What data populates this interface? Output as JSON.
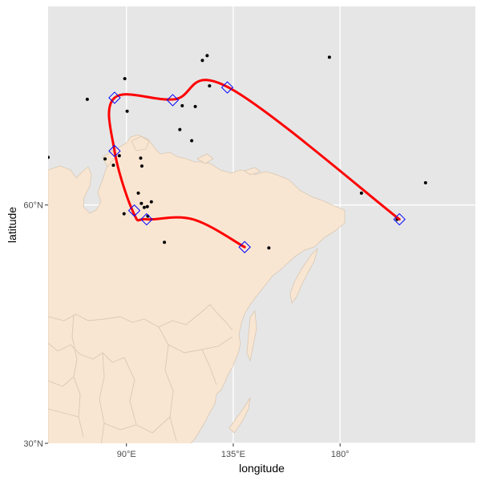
{
  "chart_data": {
    "type": "map",
    "xlabel": "longitude",
    "ylabel": "latitude",
    "xlim": [
      57,
      237
    ],
    "ylim": [
      30,
      85
    ],
    "x_ticks": [
      {
        "value": 90,
        "label": "90°E"
      },
      {
        "value": 135,
        "label": "135°E"
      },
      {
        "value": 180,
        "label": "180°"
      }
    ],
    "y_ticks": [
      {
        "value": 30,
        "label": "30°N"
      },
      {
        "value": 60,
        "label": "60°N"
      }
    ],
    "grid": true,
    "colors": {
      "panel": "#e6e6e6",
      "land": "#f9e6d2",
      "border": "#d9c8b3",
      "route": "#ff0000",
      "waypoint": "#0000ff",
      "point": "#000000",
      "grid": "#ffffff"
    },
    "route": [
      [
        139.8,
        54.7
      ],
      [
        118.0,
        58.2
      ],
      [
        98.5,
        58.2
      ],
      [
        93.0,
        59.0
      ],
      [
        85.0,
        66.8
      ],
      [
        85.0,
        73.5
      ],
      [
        110.0,
        73.3
      ],
      [
        133.0,
        74.8
      ],
      [
        205.0,
        58.2
      ]
    ],
    "waypoints": [
      [
        139.8,
        54.7
      ],
      [
        98.5,
        58.2
      ],
      [
        93.3,
        59.3
      ],
      [
        85.0,
        66.8
      ],
      [
        85.0,
        73.5
      ],
      [
        109.5,
        73.2
      ],
      [
        132.5,
        74.8
      ],
      [
        205.0,
        58.2
      ]
    ],
    "points": [
      [
        57.0,
        66.0
      ],
      [
        73.5,
        73.3
      ],
      [
        81.0,
        65.8
      ],
      [
        84.5,
        65.0
      ],
      [
        87.0,
        66.2
      ],
      [
        89.3,
        75.9
      ],
      [
        90.3,
        71.8
      ],
      [
        96.0,
        65.9
      ],
      [
        96.5,
        64.9
      ],
      [
        95.0,
        61.5
      ],
      [
        96.3,
        60.2
      ],
      [
        97.5,
        59.7
      ],
      [
        98.8,
        59.8
      ],
      [
        99.0,
        58.6
      ],
      [
        89.0,
        58.9
      ],
      [
        100.5,
        60.4
      ],
      [
        106.0,
        55.3
      ],
      [
        113.5,
        72.5
      ],
      [
        112.5,
        69.5
      ],
      [
        117.5,
        68.1
      ],
      [
        119.0,
        72.4
      ],
      [
        122.0,
        78.2
      ],
      [
        124.0,
        78.8
      ],
      [
        125.0,
        75.0
      ],
      [
        150.0,
        54.6
      ],
      [
        175.5,
        78.6
      ],
      [
        189.0,
        61.5
      ],
      [
        204.0,
        58.2
      ],
      [
        216.0,
        62.8
      ]
    ]
  }
}
